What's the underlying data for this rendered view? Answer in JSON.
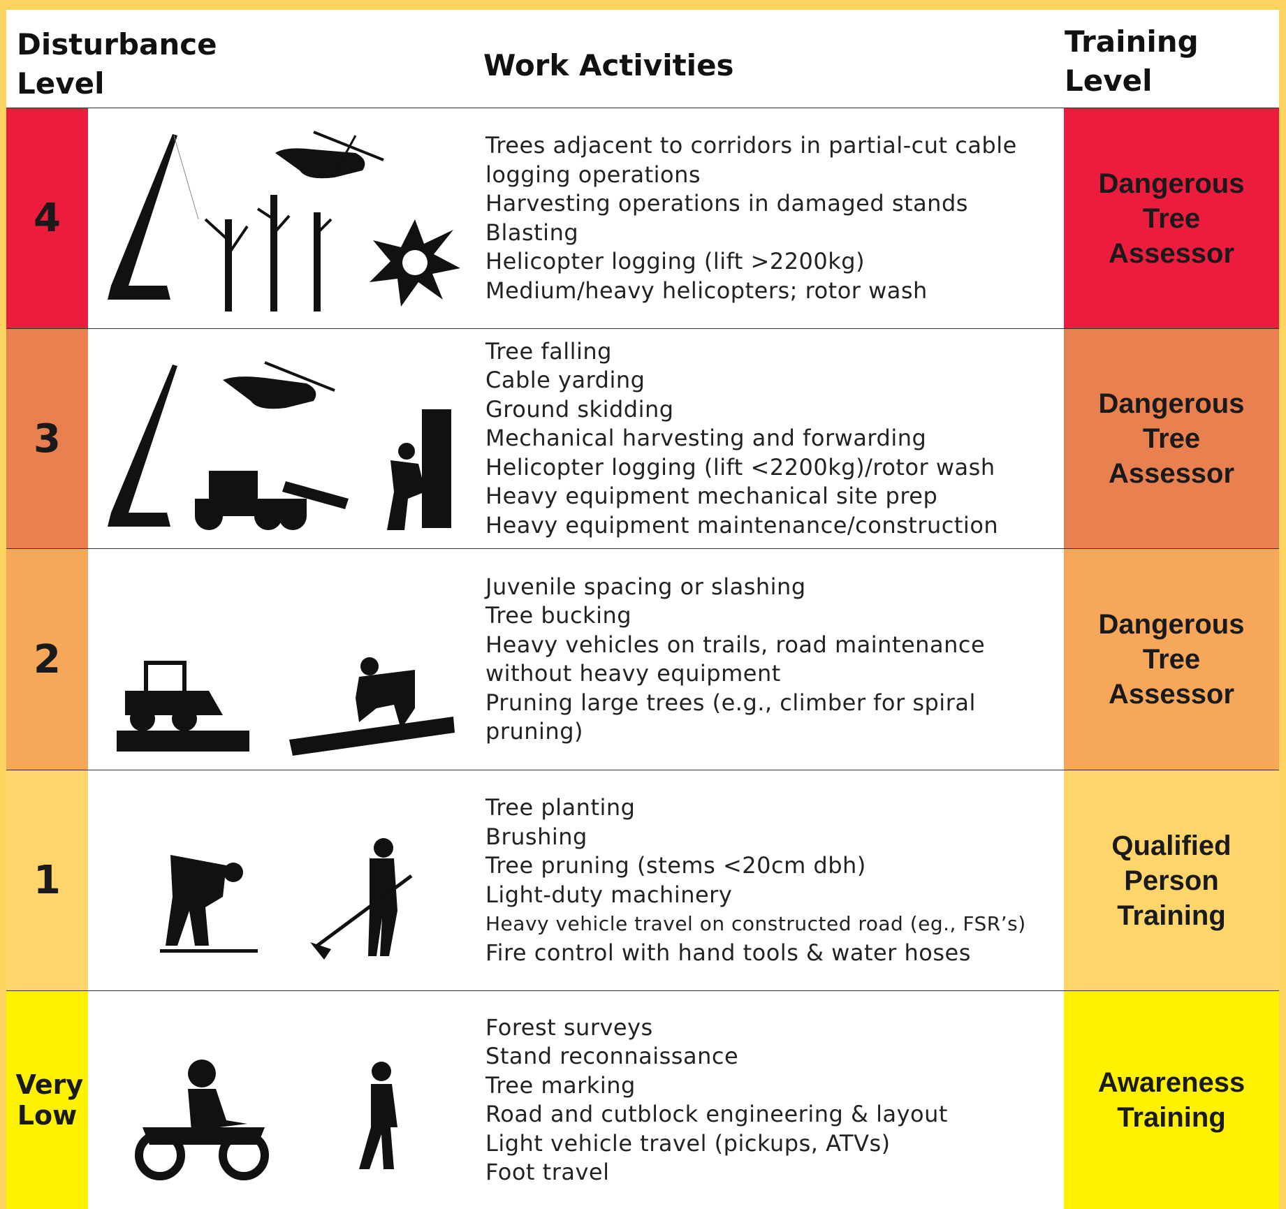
{
  "header": {
    "disturbance_level": [
      "Disturbance",
      "Level"
    ],
    "work_activities": "Work Activities",
    "training_level": [
      "Training",
      "Level"
    ]
  },
  "rows": [
    {
      "level": "4",
      "activities": [
        "Trees adjacent to corridors in partial-cut cable",
        "logging operations",
        "Harvesting operations in damaged stands",
        "Blasting",
        "Helicopter logging (lift >2200kg)",
        "Medium/heavy helicopters; rotor wash"
      ],
      "training": [
        "Dangerous",
        "Tree",
        "Assessor"
      ]
    },
    {
      "level": "3",
      "activities": [
        "Tree falling",
        "Cable yarding",
        "Ground skidding",
        "Mechanical harvesting and forwarding",
        "Helicopter logging (lift <2200kg)/rotor wash",
        "Heavy equipment mechanical site prep",
        "Heavy equipment maintenance/construction"
      ],
      "training": [
        "Dangerous",
        "Tree",
        "Assessor"
      ]
    },
    {
      "level": "2",
      "activities": [
        "Juvenile spacing or slashing",
        "Tree bucking",
        "Heavy vehicles on trails, road maintenance",
        "without heavy equipment",
        "Pruning large trees (e.g., climber for spiral",
        "pruning)"
      ],
      "training": [
        "Dangerous",
        "Tree",
        "Assessor"
      ]
    },
    {
      "level": "1",
      "activities": [
        "Tree planting",
        "Brushing",
        "Tree pruning (stems <20cm dbh)",
        "Light-duty machinery",
        "Heavy vehicle travel on constructed road (eg., FSR’s)",
        "Fire control with hand tools & water hoses"
      ],
      "training": [
        "Qualified",
        "Person",
        "Training"
      ]
    },
    {
      "level": "Very Low",
      "activities": [
        "Forest surveys",
        "Stand reconnaissance",
        "Tree marking",
        "Road and cutblock engineering & layout",
        "Light vehicle travel (pickups, ATVs)",
        "Foot travel"
      ],
      "training": [
        "Awareness",
        "Training"
      ]
    }
  ]
}
